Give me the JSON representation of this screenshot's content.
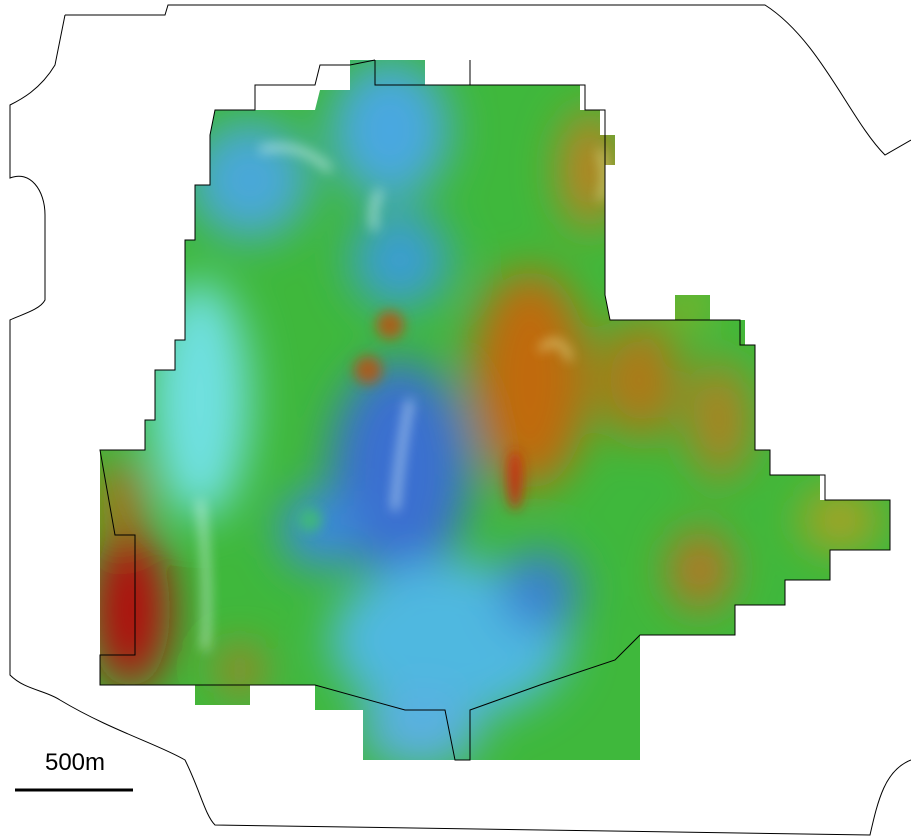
{
  "scale_bar": {
    "label": "500m"
  }
}
